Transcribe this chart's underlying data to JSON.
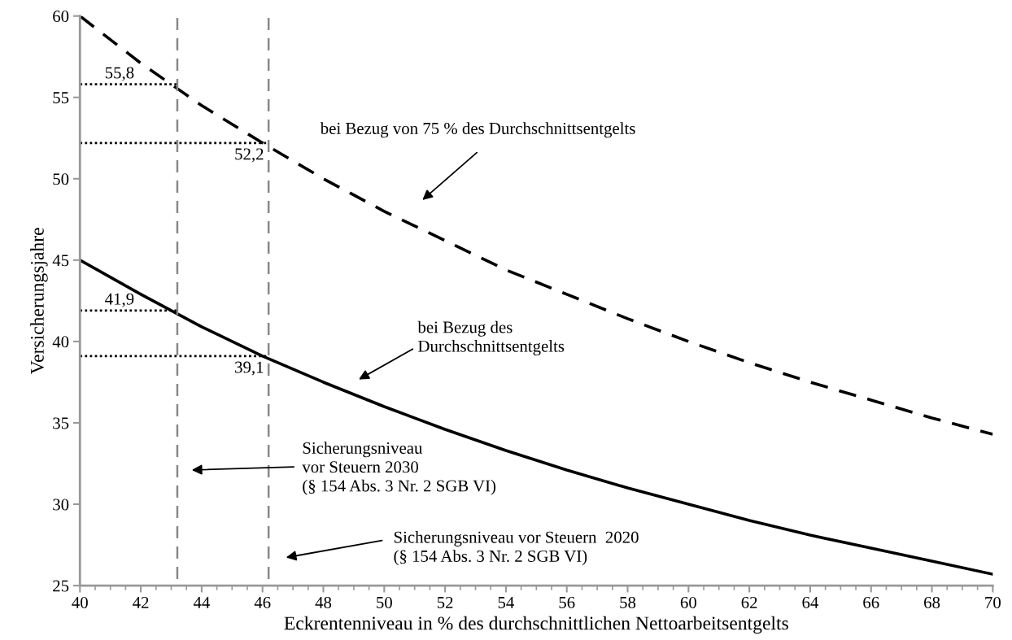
{
  "chart_data": {
    "type": "line",
    "xlabel": "Eckrentenniveau in % des durchschnittlichen Nettoarbeitsentgelts",
    "ylabel": "Versicherungsjahre",
    "x": [
      40,
      42,
      44,
      46,
      48,
      50,
      52,
      54,
      56,
      58,
      60,
      62,
      64,
      66,
      68,
      70
    ],
    "series": [
      {
        "color": "#000000",
        "line_style": "dashed",
        "values": [
          60,
          57.1,
          54.5,
          52.2,
          50,
          48,
          46.2,
          44.4,
          42.9,
          41.4,
          40,
          38.7,
          37.5,
          36.4,
          35.3,
          34.3
        ]
      },
      {
        "color": "#000000",
        "line_style": "solid",
        "values": [
          45,
          42.9,
          40.9,
          39.1,
          37.5,
          36,
          34.6,
          33.3,
          32.1,
          31.0,
          30,
          29.0,
          28.1,
          27.3,
          26.5,
          25.7
        ]
      },
      {
        "color": "#000000",
        "line_style": "dotted",
        "x": [
          40,
          43.2
        ],
        "values": [
          55.8,
          55.8
        ],
        "value_labels": [
          "55,8",
          null
        ]
      },
      {
        "color": "#000000",
        "line_style": "dotted",
        "x": [
          40,
          46.2
        ],
        "values": [
          52.2,
          52.2
        ],
        "value_labels": [
          null,
          "52,2"
        ]
      },
      {
        "color": "#000000",
        "line_style": "dotted",
        "x": [
          40,
          43.2
        ],
        "values": [
          41.9,
          41.9
        ],
        "value_labels": [
          "41,9",
          null
        ]
      },
      {
        "color": "#000000",
        "line_style": "dotted",
        "x": [
          40,
          46.2
        ],
        "values": [
          39.1,
          39.1
        ],
        "value_labels": [
          null,
          "39,1"
        ]
      }
    ],
    "xlim": [
      40,
      70
    ],
    "xticks": [
      40,
      42,
      44,
      46,
      48,
      50,
      52,
      54,
      56,
      58,
      60,
      62,
      64,
      66,
      68,
      70
    ],
    "ylim": [
      25,
      60
    ],
    "yticks": [
      25,
      30,
      35,
      40,
      45,
      50,
      55,
      60
    ],
    "grid": false,
    "marker": "none",
    "ref_lines": [
      {
        "axis": "x",
        "value": 43.2,
        "color": "#888888",
        "line_style": "dashed"
      },
      {
        "axis": "x",
        "value": 46.2,
        "color": "#888888",
        "line_style": "dashed"
      }
    ],
    "annotations": [
      "bei Bezug von 75 % des Durchschnittsentgelts",
      "bei Bezug des\nDurchschnittsentgelts",
      "Sicherungsniveau\nvor Steuern 2030\n(§ 154 Abs. 3 Nr. 2 SGB VI)",
      "Sicherungsniveau vor Steuern  2020\n(§ 154 Abs. 3 Nr. 2 SGB VI)"
    ]
  }
}
